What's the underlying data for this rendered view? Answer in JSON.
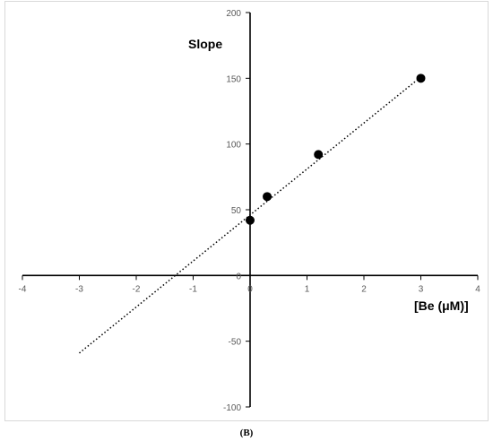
{
  "chart_data": {
    "type": "scatter",
    "title": "",
    "ylabel": "Slope",
    "xlabel": "[Be (μM)]",
    "panel_label": "(B)",
    "xlim": [
      -4,
      4
    ],
    "ylim": [
      -100,
      200
    ],
    "x_ticks": [
      -4,
      -3,
      -2,
      -1,
      0,
      1,
      2,
      3,
      4
    ],
    "y_ticks": [
      -100,
      -50,
      0,
      50,
      100,
      150,
      200
    ],
    "grid": false,
    "legend": "none",
    "series": [
      {
        "points": [
          {
            "x": 0,
            "y": 42
          },
          {
            "x": 0.3,
            "y": 60
          },
          {
            "x": 1.2,
            "y": 92
          },
          {
            "x": 3,
            "y": 150
          }
        ],
        "marker_color": "#000000"
      }
    ],
    "trendline": {
      "style": "dotted",
      "color": "#000000",
      "x_start": -3,
      "x_end": 3,
      "slope": 35,
      "intercept": 46
    }
  }
}
